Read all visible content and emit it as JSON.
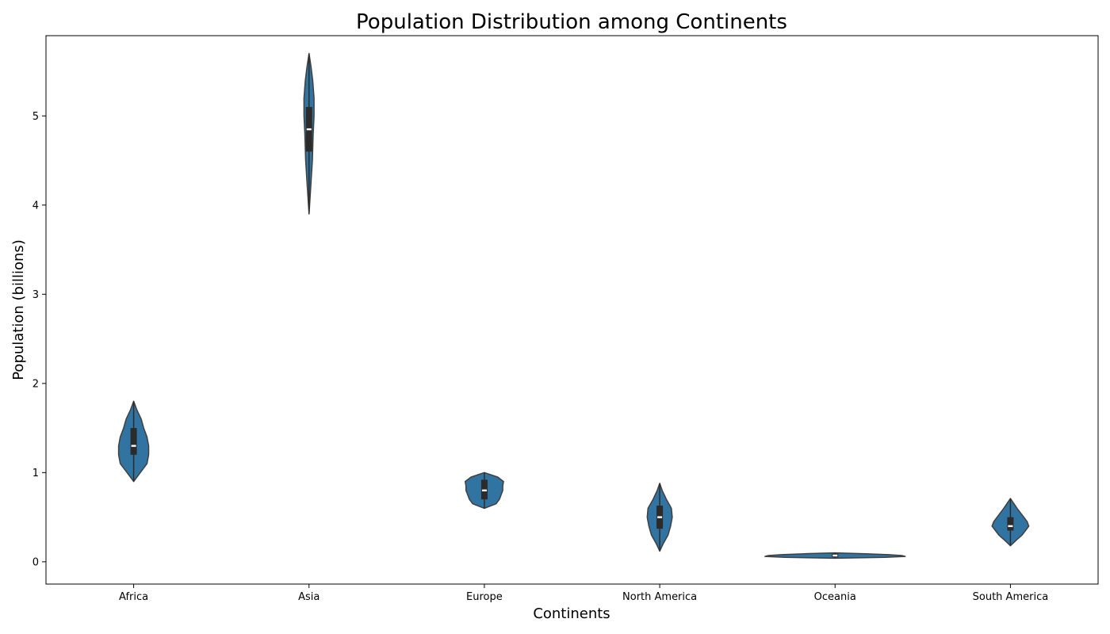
{
  "chart_data": {
    "type": "violin",
    "title": "Population Distribution among Continents",
    "xlabel": "Continents",
    "ylabel": "Population (billions)",
    "ylim": [
      -0.25,
      5.9
    ],
    "yticks": [
      0,
      1,
      2,
      3,
      4,
      5
    ],
    "ytick_labels": [
      "0",
      "1",
      "2",
      "3",
      "4",
      "5"
    ],
    "grid": false,
    "legend": "none",
    "violin_color": "#3274a1",
    "edge_color": "#3f3f3f",
    "box_color": "#2b2b2b",
    "median_color": "#ffffff",
    "categories": [
      "Africa",
      "Asia",
      "Europe",
      "North America",
      "Oceania",
      "South America"
    ],
    "violins": [
      {
        "category": "Africa",
        "min": 0.9,
        "q1": 1.2,
        "median": 1.3,
        "q3": 1.5,
        "max": 1.8,
        "profile": [
          [
            0.9,
            0.0
          ],
          [
            1.0,
            0.04
          ],
          [
            1.1,
            0.08
          ],
          [
            1.2,
            0.09
          ],
          [
            1.3,
            0.09
          ],
          [
            1.4,
            0.08
          ],
          [
            1.5,
            0.06
          ],
          [
            1.6,
            0.045
          ],
          [
            1.7,
            0.02
          ],
          [
            1.8,
            0.0
          ]
        ]
      },
      {
        "category": "Asia",
        "min": 3.9,
        "q1": 4.6,
        "median": 4.85,
        "q3": 5.1,
        "max": 5.7,
        "profile": [
          [
            3.9,
            0.0
          ],
          [
            4.2,
            0.01
          ],
          [
            4.5,
            0.02
          ],
          [
            4.8,
            0.025
          ],
          [
            5.0,
            0.03
          ],
          [
            5.2,
            0.03
          ],
          [
            5.4,
            0.022
          ],
          [
            5.55,
            0.012
          ],
          [
            5.7,
            0.0
          ]
        ]
      },
      {
        "category": "Europe",
        "min": 0.6,
        "q1": 0.7,
        "median": 0.8,
        "q3": 0.92,
        "max": 1.0,
        "profile": [
          [
            0.6,
            0.0
          ],
          [
            0.65,
            0.07
          ],
          [
            0.7,
            0.09
          ],
          [
            0.75,
            0.1
          ],
          [
            0.8,
            0.11
          ],
          [
            0.85,
            0.11
          ],
          [
            0.9,
            0.115
          ],
          [
            0.95,
            0.08
          ],
          [
            1.0,
            0.0
          ]
        ]
      },
      {
        "category": "North America",
        "min": 0.12,
        "q1": 0.37,
        "median": 0.5,
        "q3": 0.63,
        "max": 0.88,
        "profile": [
          [
            0.12,
            0.0
          ],
          [
            0.2,
            0.02
          ],
          [
            0.3,
            0.05
          ],
          [
            0.4,
            0.065
          ],
          [
            0.5,
            0.075
          ],
          [
            0.6,
            0.07
          ],
          [
            0.7,
            0.04
          ],
          [
            0.8,
            0.015
          ],
          [
            0.88,
            0.0
          ]
        ]
      },
      {
        "category": "Oceania",
        "min": 0.04,
        "q1": 0.05,
        "median": 0.07,
        "q3": 0.09,
        "max": 0.1,
        "profile": [
          [
            0.04,
            0.0
          ],
          [
            0.05,
            0.3
          ],
          [
            0.06,
            0.42
          ],
          [
            0.07,
            0.4
          ],
          [
            0.08,
            0.32
          ],
          [
            0.09,
            0.18
          ],
          [
            0.1,
            0.0
          ]
        ]
      },
      {
        "category": "South America",
        "min": 0.18,
        "q1": 0.35,
        "median": 0.4,
        "q3": 0.5,
        "max": 0.71,
        "profile": [
          [
            0.18,
            0.0
          ],
          [
            0.25,
            0.04
          ],
          [
            0.3,
            0.07
          ],
          [
            0.35,
            0.09
          ],
          [
            0.4,
            0.11
          ],
          [
            0.45,
            0.1
          ],
          [
            0.5,
            0.08
          ],
          [
            0.6,
            0.04
          ],
          [
            0.71,
            0.0
          ]
        ]
      }
    ]
  }
}
